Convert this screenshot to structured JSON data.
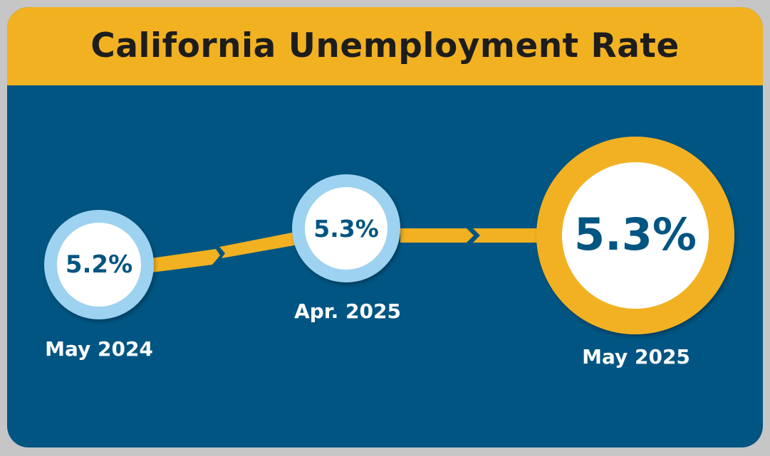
{
  "title": "California Unemployment Rate",
  "colors": {
    "panel": "#005582",
    "accent": "#f2b121",
    "ring": "#9dd2f0",
    "text_dark": "#1d1d1d",
    "text_light": "#ffffff"
  },
  "points": [
    {
      "period": "May 2024",
      "value": "5.2%"
    },
    {
      "period": "Apr. 2025",
      "value": "5.3%"
    },
    {
      "period": "May 2025",
      "value": "5.3%"
    }
  ]
}
